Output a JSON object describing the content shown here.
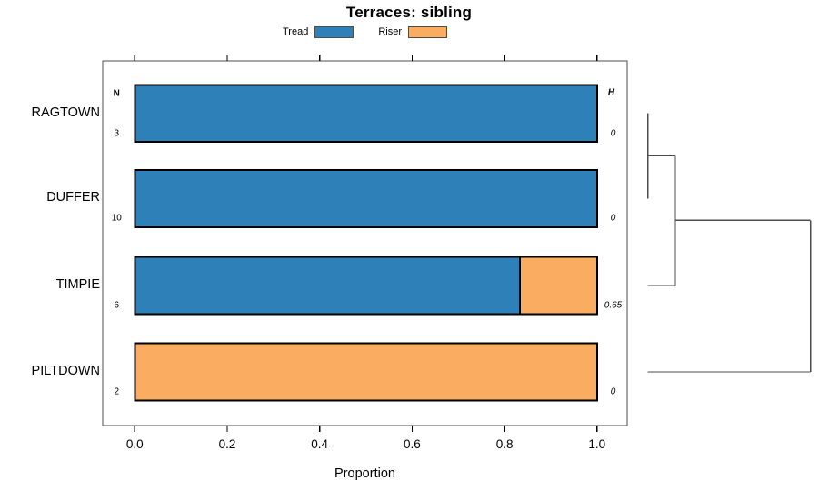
{
  "title": "Terraces: sibling",
  "legend": {
    "items": [
      {
        "label": "Tread",
        "color": "#2E81B8"
      },
      {
        "label": "Riser",
        "color": "#FAAC60"
      }
    ]
  },
  "columns": {
    "n_header": "N",
    "h_header": "H"
  },
  "x_axis": {
    "label": "Proportion",
    "tick_labels": [
      "0.0",
      "0.2",
      "0.4",
      "0.6",
      "0.8",
      "1.0"
    ]
  },
  "chart_data": {
    "type": "bar",
    "orientation": "horizontal",
    "stacked": true,
    "title": "Terraces: sibling",
    "xlabel": "Proportion",
    "xlim": [
      0,
      1
    ],
    "xticks": [
      0,
      0.2,
      0.4,
      0.6,
      0.8,
      1
    ],
    "grid": false,
    "legend_position": "top",
    "categories": [
      "RAGTOWN",
      "DUFFER",
      "TIMPIE",
      "PILTDOWN"
    ],
    "series": [
      {
        "name": "Tread",
        "color": "#2E81B8",
        "values": [
          1,
          1,
          0.8333,
          0
        ]
      },
      {
        "name": "Riser",
        "color": "#FAAC60",
        "values": [
          0,
          0,
          0.1667,
          1
        ]
      }
    ],
    "sample_sizes": {
      "header": "N",
      "values": [
        "3",
        "10",
        "6",
        "2"
      ]
    },
    "heterogeneity": {
      "header": "H",
      "values": [
        "0",
        "0",
        "0.65",
        "0"
      ]
    },
    "bar_border_color": "#000000",
    "axis_box_color": "#4d4d4d",
    "dendrogram": {
      "side": "right",
      "line_color": "#4d4d4d",
      "leaf_order": [
        "RAGTOWN",
        "DUFFER",
        "TIMPIE",
        "PILTDOWN"
      ],
      "merges": [
        {
          "members": [
            "RAGTOWN",
            "DUFFER"
          ],
          "relative_height": 0
        },
        {
          "members": [
            "RAGTOWN+DUFFER",
            "TIMPIE"
          ],
          "relative_height": 0.169
        },
        {
          "members": [
            "RAGTOWN+DUFFER+TIMPIE",
            "PILTDOWN"
          ],
          "relative_height": 1
        }
      ],
      "segments": [
        {
          "h1": 0,
          "p1": 0,
          "h2": 0,
          "p2": 1
        },
        {
          "h1": 0,
          "p1": 0.5,
          "h2": 0.169,
          "p2": 0.5
        },
        {
          "h1": 0,
          "p1": 2,
          "h2": 0.169,
          "p2": 2
        },
        {
          "h1": 0.169,
          "p1": 0.5,
          "h2": 0.169,
          "p2": 2
        },
        {
          "h1": 0.169,
          "p1": 1.25,
          "h2": 1,
          "p2": 1.25
        },
        {
          "h1": 0,
          "p1": 3,
          "h2": 1,
          "p2": 3
        },
        {
          "h1": 1,
          "p1": 1.25,
          "h2": 1,
          "p2": 3
        }
      ]
    }
  }
}
